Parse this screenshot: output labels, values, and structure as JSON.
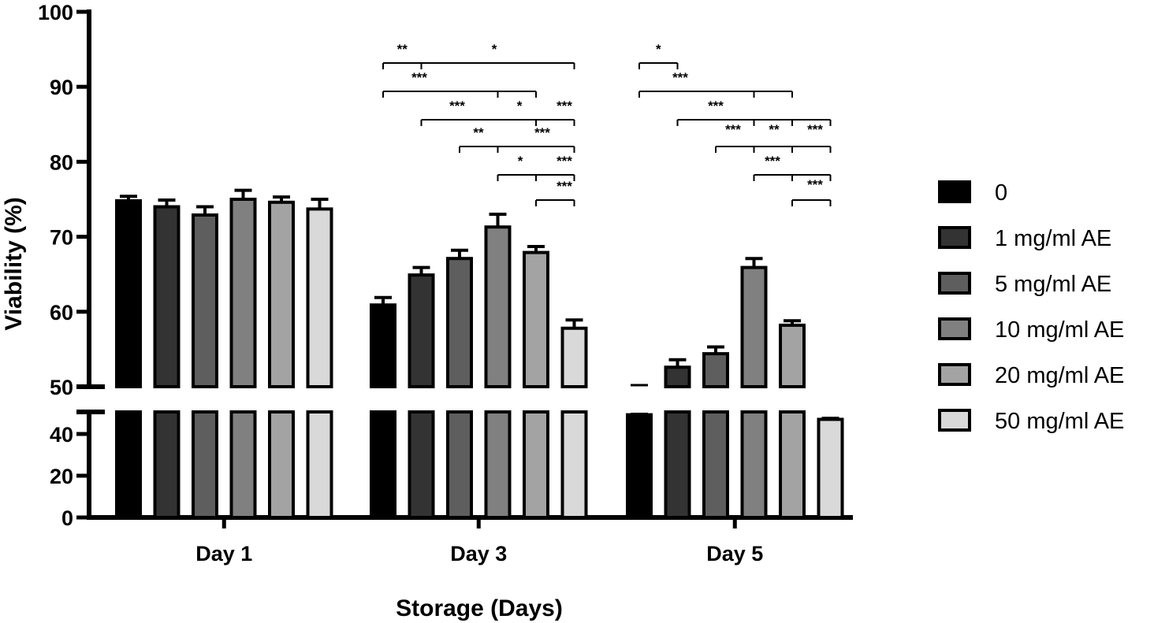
{
  "chart_data": {
    "type": "bar",
    "xlabel": "Storage (Days)",
    "ylabel": "Viability (%)",
    "categories": [
      "Day 1",
      "Day 3",
      "Day 5"
    ],
    "y_axis": {
      "broken": true,
      "lower_segment": {
        "range": [
          0,
          50
        ],
        "ticks": [
          0,
          20,
          40
        ]
      },
      "upper_segment": {
        "range": [
          50,
          100
        ],
        "ticks": [
          50,
          60,
          70,
          80,
          90,
          100
        ]
      }
    },
    "series": [
      {
        "name": "0",
        "color": "#000000",
        "values": [
          74.8,
          60.9,
          49.2
        ],
        "errors": [
          0.6,
          1.0,
          0.4
        ]
      },
      {
        "name": "1 mg/ml AE",
        "color": "#333333",
        "values": [
          74.0,
          64.9,
          52.6
        ],
        "errors": [
          0.9,
          1.0,
          1.0
        ]
      },
      {
        "name": "5 mg/ml AE",
        "color": "#5e5e5e",
        "values": [
          72.9,
          67.1,
          54.4
        ],
        "errors": [
          1.1,
          1.1,
          0.9
        ]
      },
      {
        "name": "10 mg/ml AE",
        "color": "#808080",
        "values": [
          75.0,
          71.3,
          65.9
        ],
        "errors": [
          1.2,
          1.7,
          1.2
        ]
      },
      {
        "name": "20 mg/ml AE",
        "color": "#a3a3a3",
        "values": [
          74.6,
          67.9,
          58.2
        ],
        "errors": [
          0.7,
          0.8,
          0.6
        ]
      },
      {
        "name": "50 mg/ml AE",
        "color": "#d9d9d9",
        "values": [
          73.7,
          57.8,
          47.0
        ],
        "errors": [
          1.3,
          1.1,
          0.7
        ]
      }
    ],
    "significance": [
      {
        "group": 1,
        "from": 0,
        "to": 1,
        "label": "**"
      },
      {
        "group": 1,
        "from": 0,
        "to": 5,
        "label": "*"
      },
      {
        "group": 1,
        "from": 0,
        "to": 4,
        "label": "***",
        "tick_at": 1
      },
      {
        "group": 1,
        "from": 0,
        "to": 4,
        "label": "***",
        "tick_at": 3,
        "line_only": true
      },
      {
        "group": 1,
        "from": 1,
        "to": 5,
        "label": "***",
        "tick_at": 3
      },
      {
        "group": 1,
        "from": 3,
        "to": 4,
        "label": "*",
        "line_only": true
      },
      {
        "group": 1,
        "from": 1,
        "to": 5,
        "label": "*",
        "tick_at": 4
      },
      {
        "group": 1,
        "from": 4,
        "to": 5,
        "label": "***"
      },
      {
        "group": 1,
        "from": 2,
        "to": 5,
        "label": "**",
        "tick_at": 3
      },
      {
        "group": 1,
        "from": 3,
        "to": 5,
        "label": "***"
      },
      {
        "group": 1,
        "from": 3,
        "to": 5,
        "label": "*",
        "tick_at": 4
      },
      {
        "group": 1,
        "from": 4,
        "to": 5,
        "label": "***"
      },
      {
        "group": 1,
        "from": 4,
        "to": 5,
        "label": "***"
      },
      {
        "group": 2,
        "from": 0,
        "to": 1,
        "label": "*"
      },
      {
        "group": 2,
        "from": 0,
        "to": 4,
        "label": "***",
        "tick_at": 3
      },
      {
        "group": 2,
        "from": 1,
        "to": 5,
        "label": "***",
        "tick_at": 3
      },
      {
        "group": 2,
        "from": 2,
        "to": 5,
        "label": "***",
        "tick_at": 3
      },
      {
        "group": 2,
        "from": 3,
        "to": 4,
        "label": "**",
        "line_only": true
      },
      {
        "group": 2,
        "from": 4,
        "to": 5,
        "label": "***"
      },
      {
        "group": 2,
        "from": 3,
        "to": 5,
        "label": "***",
        "tick_at": 4
      },
      {
        "group": 2,
        "from": 4,
        "to": 5,
        "label": "***"
      }
    ],
    "legend_position": "right"
  }
}
